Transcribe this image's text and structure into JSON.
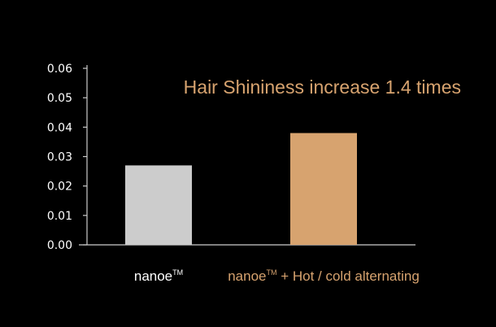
{
  "chart_data": {
    "type": "bar",
    "title": "Hair Shininess increase 1.4 times",
    "categories": [
      {
        "name": "nanoe",
        "tm": "TM",
        "suffix": ""
      },
      {
        "name": "nanoe",
        "tm": "TM",
        "suffix": " +  Hot / cold alternating"
      }
    ],
    "values": [
      0.027,
      0.038
    ],
    "ylim": [
      0,
      0.06
    ],
    "yticks": [
      "0.00",
      "0.01",
      "0.02",
      "0.03",
      "0.04",
      "0.05",
      "0.06"
    ],
    "xlabel": "",
    "ylabel": "",
    "grid": false,
    "colors": {
      "background": "#000000",
      "axis": "#cccccc",
      "bar_1": "#cccccc",
      "bar_2": "#d7a36f",
      "label_1": "#ffffff",
      "label_2": "#d7a36f",
      "title": "#d7a36f"
    }
  }
}
